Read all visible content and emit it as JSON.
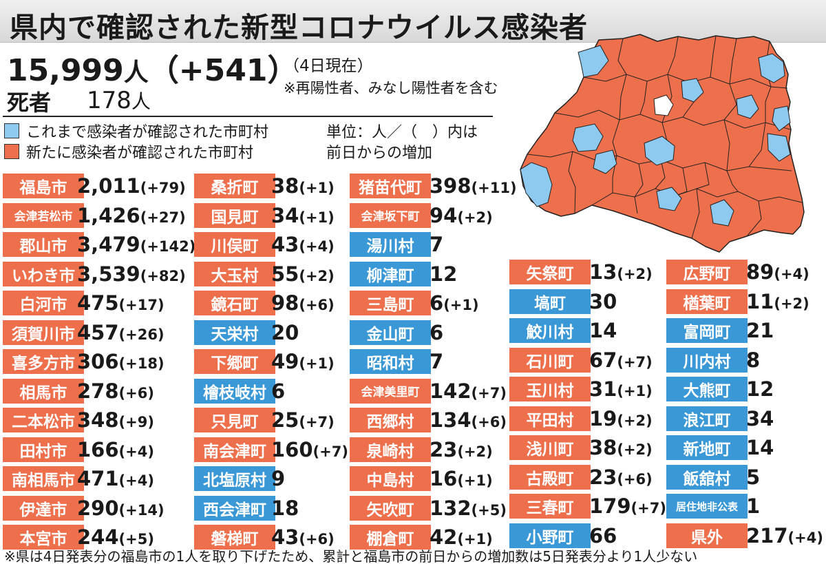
{
  "title": "県内で確認された新型コロナウイルス感染者",
  "total": {
    "count": "15,999",
    "unit": "人",
    "increase": "（+541）"
  },
  "as_of": "（4日現在）",
  "note": "※再陽性者、みなし陽性者を含む",
  "deaths": {
    "label": "死者",
    "count": "178",
    "unit": "人"
  },
  "legend": {
    "existing": "これまで感染者が確認された市町村",
    "new": "新たに感染者が確認された市町村",
    "unit_note_1": "単位：人／（　）内は",
    "unit_note_2": "前日からの増加"
  },
  "colors": {
    "new_case": "#ee6f4b",
    "existing_case": "#3a98d6",
    "map_existing": "#8ecaf0",
    "map_none": "#ffffff"
  },
  "columns": [
    [
      {
        "name": "福島市",
        "status": "new",
        "count": "2,011",
        "inc": "(+79)"
      },
      {
        "name": "会津若松市",
        "status": "new",
        "count": "1,426",
        "inc": "(+27)"
      },
      {
        "name": "郡山市",
        "status": "new",
        "count": "3,479",
        "inc": "(+142)"
      },
      {
        "name": "いわき市",
        "status": "new",
        "count": "3,539",
        "inc": "(+82)"
      },
      {
        "name": "白河市",
        "status": "new",
        "count": "475",
        "inc": "(+17)"
      },
      {
        "name": "須賀川市",
        "status": "new",
        "count": "457",
        "inc": "(+26)"
      },
      {
        "name": "喜多方市",
        "status": "new",
        "count": "306",
        "inc": "(+18)"
      },
      {
        "name": "相馬市",
        "status": "new",
        "count": "278",
        "inc": "(+6)"
      },
      {
        "name": "二本松市",
        "status": "new",
        "count": "348",
        "inc": "(+9)"
      },
      {
        "name": "田村市",
        "status": "new",
        "count": "166",
        "inc": "(+4)"
      },
      {
        "name": "南相馬市",
        "status": "new",
        "count": "471",
        "inc": "(+4)"
      },
      {
        "name": "伊達市",
        "status": "new",
        "count": "290",
        "inc": "(+14)"
      },
      {
        "name": "本宮市",
        "status": "new",
        "count": "244",
        "inc": "(+5)"
      }
    ],
    [
      {
        "name": "桑折町",
        "status": "new",
        "count": "38",
        "inc": "(+1)"
      },
      {
        "name": "国見町",
        "status": "new",
        "count": "34",
        "inc": "(+1)"
      },
      {
        "name": "川俣町",
        "status": "new",
        "count": "43",
        "inc": "(+4)"
      },
      {
        "name": "大玉村",
        "status": "new",
        "count": "55",
        "inc": "(+2)"
      },
      {
        "name": "鏡石町",
        "status": "new",
        "count": "98",
        "inc": "(+6)"
      },
      {
        "name": "天栄村",
        "status": "existing",
        "count": "20",
        "inc": ""
      },
      {
        "name": "下郷町",
        "status": "new",
        "count": "49",
        "inc": "(+1)"
      },
      {
        "name": "檜枝岐村",
        "status": "existing",
        "count": "6",
        "inc": ""
      },
      {
        "name": "只見町",
        "status": "new",
        "count": "25",
        "inc": "(+7)"
      },
      {
        "name": "南会津町",
        "status": "new",
        "count": "160",
        "inc": "(+7)"
      },
      {
        "name": "北塩原村",
        "status": "existing",
        "count": "9",
        "inc": ""
      },
      {
        "name": "西会津町",
        "status": "existing",
        "count": "18",
        "inc": ""
      },
      {
        "name": "磐梯町",
        "status": "new",
        "count": "43",
        "inc": "(+6)"
      }
    ],
    [
      {
        "name": "猪苗代町",
        "status": "new",
        "count": "398",
        "inc": "(+11)"
      },
      {
        "name": "会津坂下町",
        "status": "new",
        "count": "94",
        "inc": "(+2)"
      },
      {
        "name": "湯川村",
        "status": "existing",
        "count": "7",
        "inc": ""
      },
      {
        "name": "柳津町",
        "status": "existing",
        "count": "12",
        "inc": ""
      },
      {
        "name": "三島町",
        "status": "new",
        "count": "6",
        "inc": "(+1)"
      },
      {
        "name": "金山町",
        "status": "existing",
        "count": "6",
        "inc": ""
      },
      {
        "name": "昭和村",
        "status": "existing",
        "count": "7",
        "inc": ""
      },
      {
        "name": "会津美里町",
        "status": "new",
        "count": "142",
        "inc": "(+7)"
      },
      {
        "name": "西郷村",
        "status": "new",
        "count": "134",
        "inc": "(+6)"
      },
      {
        "name": "泉崎村",
        "status": "new",
        "count": "23",
        "inc": "(+2)"
      },
      {
        "name": "中島村",
        "status": "new",
        "count": "16",
        "inc": "(+1)"
      },
      {
        "name": "矢吹町",
        "status": "new",
        "count": "132",
        "inc": "(+5)"
      },
      {
        "name": "棚倉町",
        "status": "new",
        "count": "42",
        "inc": "(+1)"
      }
    ],
    [
      {
        "name": "矢祭町",
        "status": "new",
        "count": "13",
        "inc": "(+2)"
      },
      {
        "name": "塙町",
        "status": "existing",
        "count": "30",
        "inc": ""
      },
      {
        "name": "鮫川村",
        "status": "existing",
        "count": "14",
        "inc": ""
      },
      {
        "name": "石川町",
        "status": "new",
        "count": "67",
        "inc": "(+7)"
      },
      {
        "name": "玉川村",
        "status": "new",
        "count": "31",
        "inc": "(+1)"
      },
      {
        "name": "平田村",
        "status": "new",
        "count": "19",
        "inc": "(+2)"
      },
      {
        "name": "浅川町",
        "status": "new",
        "count": "38",
        "inc": "(+2)"
      },
      {
        "name": "古殿町",
        "status": "new",
        "count": "23",
        "inc": "(+6)"
      },
      {
        "name": "三春町",
        "status": "new",
        "count": "179",
        "inc": "(+7)"
      },
      {
        "name": "小野町",
        "status": "existing",
        "count": "66",
        "inc": ""
      }
    ],
    [
      {
        "name": "広野町",
        "status": "new",
        "count": "89",
        "inc": "(+4)"
      },
      {
        "name": "楢葉町",
        "status": "new",
        "count": "11",
        "inc": "(+2)"
      },
      {
        "name": "富岡町",
        "status": "existing",
        "count": "21",
        "inc": ""
      },
      {
        "name": "川内村",
        "status": "existing",
        "count": "8",
        "inc": ""
      },
      {
        "name": "大熊町",
        "status": "existing",
        "count": "12",
        "inc": ""
      },
      {
        "name": "浪江町",
        "status": "existing",
        "count": "34",
        "inc": ""
      },
      {
        "name": "新地町",
        "status": "existing",
        "count": "14",
        "inc": ""
      },
      {
        "name": "飯舘村",
        "status": "existing",
        "count": "5",
        "inc": ""
      },
      {
        "name": "居住地非公表",
        "status": "existing",
        "count": "1",
        "inc": ""
      },
      {
        "name": "県外",
        "status": "new",
        "count": "217",
        "inc": "(+4)"
      }
    ]
  ],
  "footnote": "※県は4日発表分の福島市の1人を取り下げたため、累計と福島市の前日からの増加数は5日発表分より1人少ない"
}
